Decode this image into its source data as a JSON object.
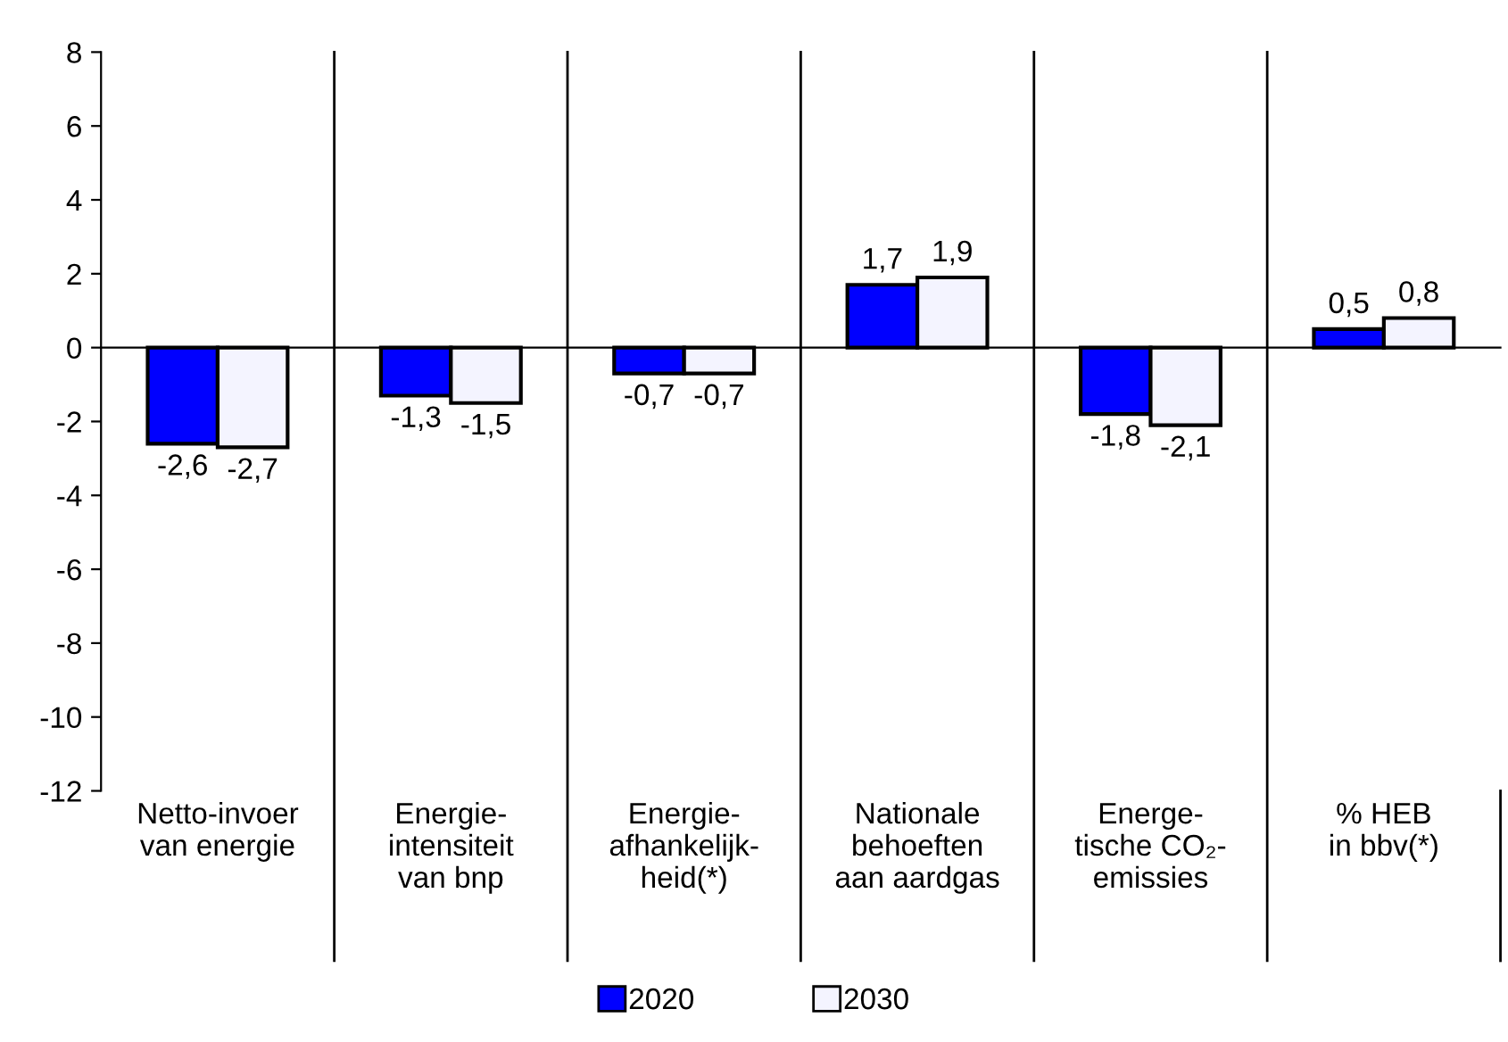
{
  "chart_data": {
    "type": "bar",
    "categories": [
      "Netto-invoer\nvan energie",
      "Energie-\nintensiteit\nvan bnp",
      "Energie-\nafhankelijk-\nheid(*)",
      "Nationale\nbehoeften\naan aardgas",
      "Energe-\ntische CO₂-\nemissies",
      "% HEB\nin bbv(*)"
    ],
    "series": [
      {
        "name": "2020",
        "color": "#0000ff",
        "values": [
          -2.6,
          -1.3,
          -0.7,
          1.7,
          -1.8,
          0.5
        ],
        "value_labels": [
          "-2,6",
          "-1,3",
          "-0,7",
          "1,7",
          "-1,8",
          "0,5"
        ]
      },
      {
        "name": "2030",
        "color": "#f4f4ff",
        "values": [
          -2.7,
          -1.5,
          -0.7,
          1.9,
          -2.1,
          0.8
        ],
        "value_labels": [
          "-2,7",
          "-1,5",
          "-0,7",
          "1,9",
          "-2,1",
          "0,8"
        ]
      }
    ],
    "ylim": [
      -12,
      8
    ],
    "yticks": [
      -12,
      -10,
      -8,
      -6,
      -4,
      -2,
      0,
      2,
      4,
      6,
      8
    ],
    "grid": false,
    "legend": "bottom"
  }
}
